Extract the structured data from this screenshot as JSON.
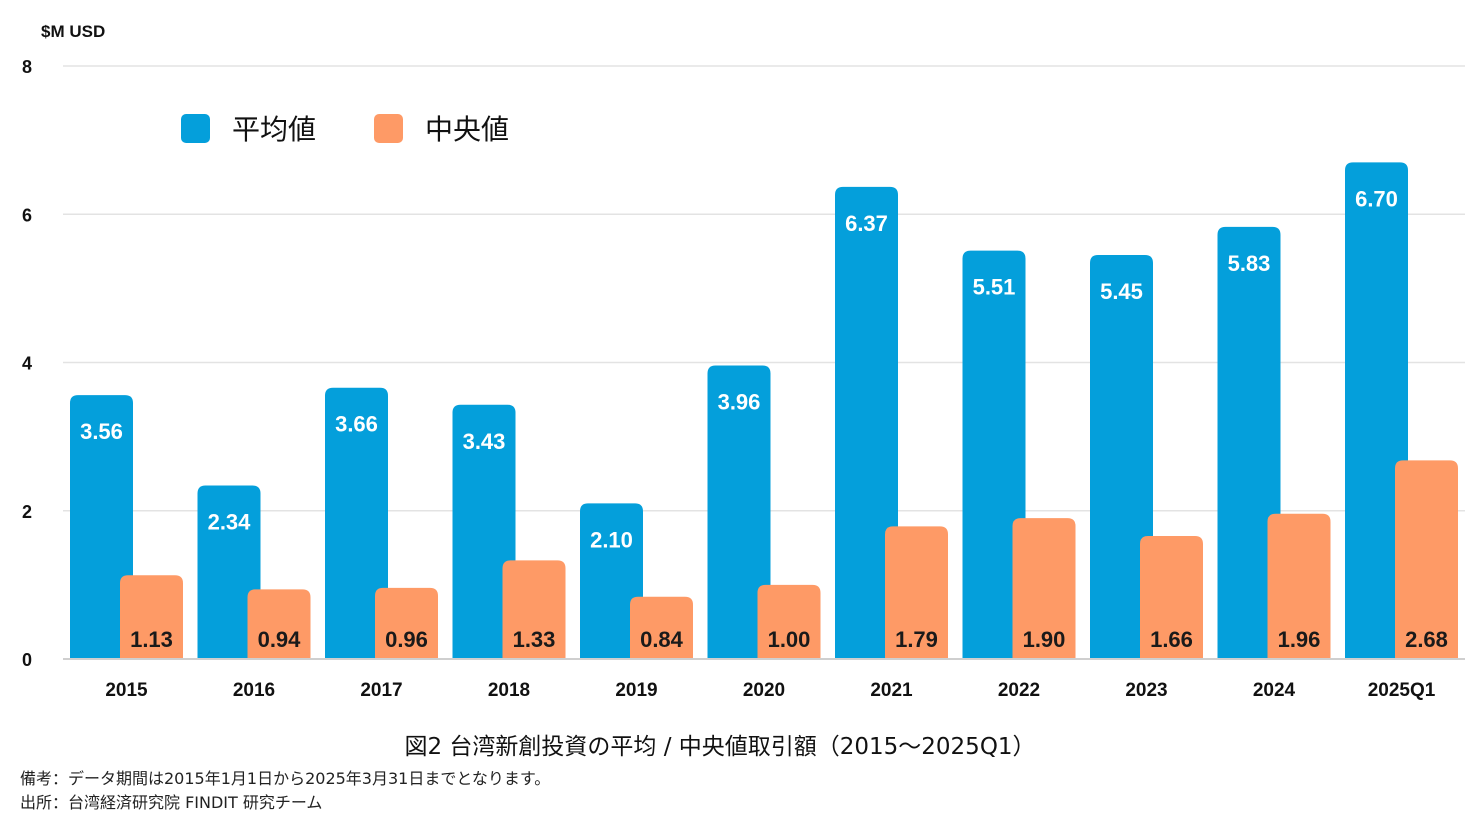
{
  "chart_data": {
    "type": "bar",
    "unit_label": "$M USD",
    "categories": [
      "2015",
      "2016",
      "2017",
      "2018",
      "2019",
      "2020",
      "2021",
      "2022",
      "2023",
      "2024",
      "2025Q1"
    ],
    "series": [
      {
        "name": "平均値",
        "color": "#049fdb",
        "values": [
          3.56,
          2.34,
          3.66,
          3.43,
          2.1,
          3.96,
          6.37,
          5.51,
          5.45,
          5.83,
          6.7
        ],
        "labels": [
          "3.56",
          "2.34",
          "3.66",
          "3.43",
          "2.10",
          "3.96",
          "6.37",
          "5.51",
          "5.45",
          "5.83",
          "6.70"
        ]
      },
      {
        "name": "中央値",
        "color": "#fe9a66",
        "values": [
          1.13,
          0.94,
          0.96,
          1.33,
          0.84,
          1.0,
          1.79,
          1.9,
          1.66,
          1.96,
          2.68
        ],
        "labels": [
          "1.13",
          "0.94",
          "0.96",
          "1.33",
          "0.84",
          "1.00",
          "1.79",
          "1.90",
          "1.66",
          "1.96",
          "2.68"
        ]
      }
    ],
    "ylim": [
      0,
      8
    ],
    "yticks": [
      "0",
      "2",
      "4",
      "6",
      "8"
    ],
    "grid": true,
    "legend_position": "top-left"
  },
  "caption": "図2 台湾新創投資の平均 / 中央値取引額（2015～2025Q1）",
  "notes": {
    "remark": "備考：データ期間は2015年1月1日から2025年3月31日までとなります。",
    "source": "出所：台湾経済研究院 FINDIT 研究チーム"
  }
}
